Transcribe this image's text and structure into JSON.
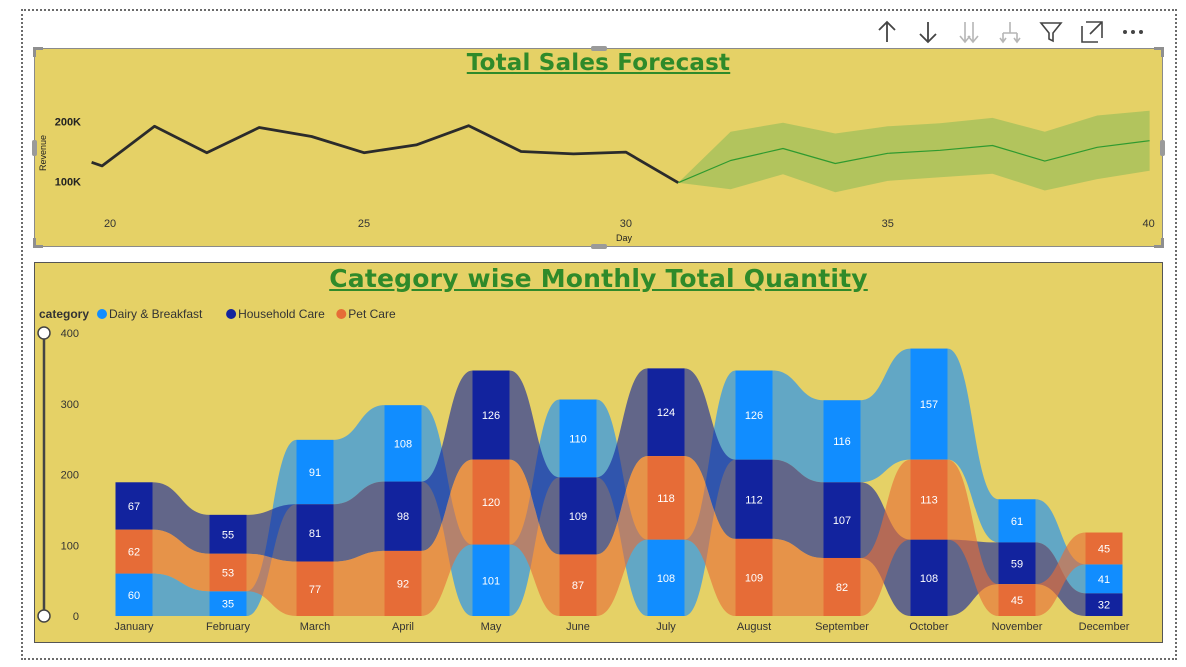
{
  "toolbar": {
    "buttons": [
      {
        "name": "sort-ascending-icon",
        "glyph": "up",
        "enabled": true
      },
      {
        "name": "sort-descending-icon",
        "glyph": "down",
        "enabled": true
      },
      {
        "name": "drill-down-all-icon",
        "glyph": "double-down",
        "enabled": false
      },
      {
        "name": "expand-hierarchy-icon",
        "glyph": "fork",
        "enabled": false
      },
      {
        "name": "filter-icon",
        "glyph": "funnel",
        "enabled": true
      },
      {
        "name": "focus-mode-icon",
        "glyph": "expand",
        "enabled": true
      },
      {
        "name": "more-options-icon",
        "glyph": "dots",
        "enabled": true
      }
    ]
  },
  "forecast": {
    "title": "Total Sales Forecast"
  },
  "category": {
    "title": "Category wise Monthly Total Quantity"
  },
  "chart_data": [
    {
      "type": "line",
      "title": "Total Sales Forecast",
      "xlabel": "Day",
      "ylabel": "Revenue",
      "xlim": [
        19.8,
        40
      ],
      "ylim": [
        70000,
        230000
      ],
      "x_ticks": [
        20,
        25,
        30,
        40
      ],
      "x_tick_labels": [
        "20",
        "25",
        "30",
        "40"
      ],
      "extra_x_ticks": [
        35
      ],
      "y_ticks": [
        100000,
        200000
      ],
      "y_tick_labels": [
        "100K",
        "200K"
      ],
      "grid": false,
      "series": [
        {
          "name": "",
          "color": "#2b2b2b",
          "x": [
            19.8,
            20,
            21,
            22,
            23,
            24,
            25,
            26,
            27,
            28,
            29,
            30,
            31
          ],
          "y": [
            132000,
            126000,
            192000,
            148000,
            190000,
            175000,
            148000,
            161000,
            193000,
            150000,
            146000,
            149000,
            98000
          ]
        },
        {
          "name": "",
          "color": "#2f9a2f",
          "x": [
            31,
            32,
            33,
            34,
            35,
            36,
            37,
            38,
            39,
            40
          ],
          "y": [
            98000,
            135000,
            155000,
            130000,
            147000,
            152000,
            160000,
            134000,
            157000,
            168000
          ]
        }
      ],
      "confidence_band": {
        "color": "#a9c25c",
        "x": [
          31,
          32,
          33,
          34,
          35,
          36,
          37,
          38,
          39,
          40
        ],
        "upper": [
          98000,
          183000,
          198000,
          180000,
          192000,
          197000,
          206000,
          183000,
          210000,
          218000
        ],
        "lower": [
          98000,
          87000,
          112000,
          82000,
          101000,
          107000,
          113000,
          85000,
          104000,
          118000
        ]
      }
    },
    {
      "type": "ribbon",
      "title": "Category wise Monthly Total Quantity",
      "legend_title": "category",
      "legend_position": "top-left",
      "ylim": [
        0,
        400
      ],
      "y_ticks": [
        0,
        100,
        200,
        300,
        400
      ],
      "categories": [
        "January",
        "February",
        "March",
        "April",
        "May",
        "June",
        "July",
        "August",
        "September",
        "October",
        "November",
        "December"
      ],
      "series": [
        {
          "name": "Dairy & Breakfast",
          "color": "#118dff",
          "values": [
            60,
            35,
            91,
            108,
            101,
            110,
            108,
            126,
            116,
            157,
            61,
            41
          ]
        },
        {
          "name": "Household Care",
          "color": "#12239e",
          "values": [
            67,
            55,
            81,
            98,
            126,
            109,
            124,
            112,
            107,
            108,
            59,
            32
          ]
        },
        {
          "name": "Pet Care",
          "color": "#e66c37",
          "values": [
            62,
            53,
            77,
            92,
            120,
            87,
            118,
            109,
            82,
            113,
            45,
            45
          ]
        }
      ]
    }
  ]
}
